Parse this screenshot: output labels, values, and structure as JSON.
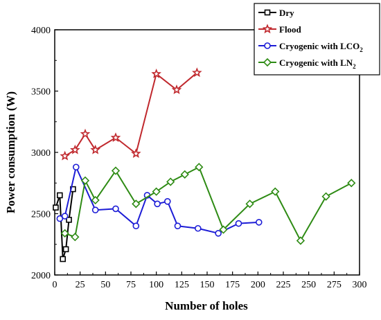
{
  "chart_data": {
    "type": "line",
    "xlabel": "Number of holes",
    "ylabel": "Power consumption (W)",
    "xlim": [
      0,
      300
    ],
    "ylim": [
      2000,
      4000
    ],
    "x_ticks": [
      0,
      25,
      50,
      75,
      100,
      125,
      150,
      175,
      200,
      225,
      250,
      275,
      300
    ],
    "y_ticks": [
      2000,
      2500,
      3000,
      3500,
      4000
    ],
    "grid": false,
    "legend_position": "top-right",
    "series": [
      {
        "name": "Dry",
        "color": "#000000",
        "marker": "square",
        "x": [
          1,
          5,
          8,
          11,
          14,
          18
        ],
        "y": [
          2550,
          2650,
          2130,
          2210,
          2450,
          2700
        ]
      },
      {
        "name": "Flood",
        "color": "#c0282d",
        "marker": "star",
        "x": [
          10,
          20,
          30,
          40,
          60,
          80,
          100,
          120,
          140
        ],
        "y": [
          2970,
          3020,
          3150,
          3020,
          3120,
          2990,
          3640,
          3510,
          3650
        ]
      },
      {
        "name": "Cryogenic with LCO",
        "name_sub": "2",
        "color": "#1c1cd6",
        "marker": "circle",
        "x": [
          5,
          10,
          21,
          40,
          60,
          80,
          91,
          101,
          111,
          121,
          141,
          161,
          181,
          201
        ],
        "y": [
          2460,
          2480,
          2880,
          2530,
          2540,
          2400,
          2650,
          2580,
          2600,
          2400,
          2380,
          2340,
          2420,
          2430
        ]
      },
      {
        "name": "Cryogenic with LN",
        "name_sub": "2",
        "color": "#2e8b14",
        "marker": "diamond",
        "x": [
          10,
          20,
          30,
          40,
          60,
          80,
          100,
          114,
          128,
          142,
          166,
          192,
          217,
          242,
          267,
          292
        ],
        "y": [
          2340,
          2310,
          2770,
          2610,
          2850,
          2580,
          2680,
          2760,
          2820,
          2880,
          2370,
          2580,
          2680,
          2280,
          2640,
          2750
        ]
      }
    ]
  }
}
